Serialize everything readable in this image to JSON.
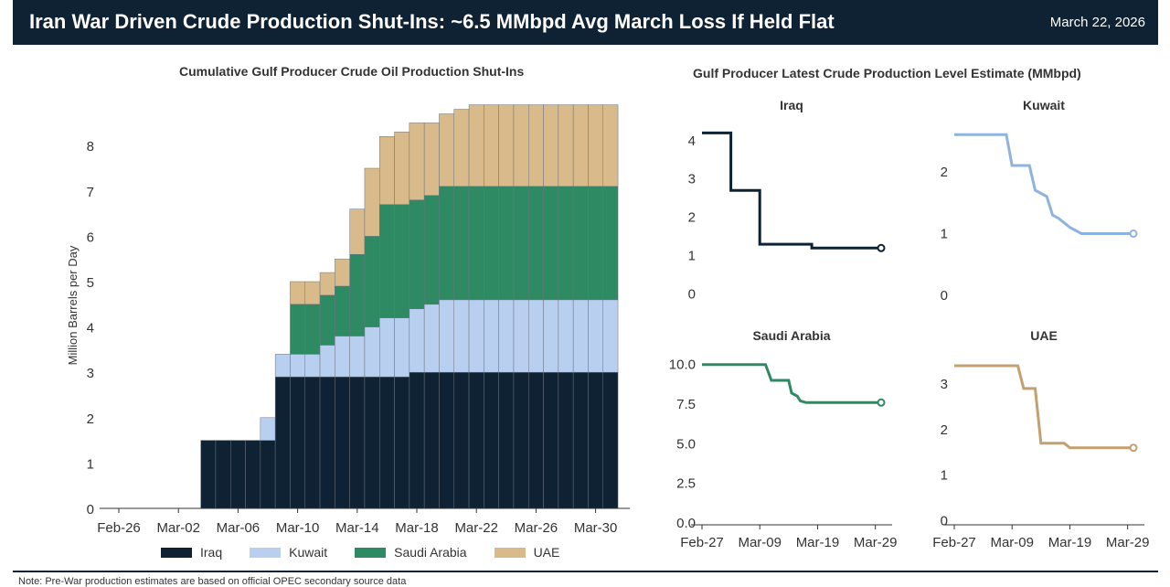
{
  "header": {
    "title": "Iran War Driven Crude Production Shut-Ins: ~6.5 MMbpd Avg March Loss If Held Flat",
    "date": "March 22, 2026"
  },
  "note": "Note: Pre-War production estimates are based on official OPEC secondary source data",
  "colors": {
    "header_bg": "#0e2233",
    "iraq": "#0e2233",
    "kuwait": "#b8cff0",
    "saudi": "#2e8a63",
    "uae": "#d9bb8b"
  },
  "chart_data": [
    {
      "type": "bar",
      "stacked": true,
      "title": "Cumulative Gulf Producer Crude Oil Production Shut-Ins",
      "xlabel": "",
      "ylabel": "Million Barrels per Day",
      "ylim": [
        0,
        9
      ],
      "yticks": [
        0,
        1,
        2,
        3,
        4,
        5,
        6,
        7,
        8
      ],
      "xtick_labels": [
        "Feb-26",
        "Mar-02",
        "Mar-06",
        "Mar-10",
        "Mar-14",
        "Mar-18",
        "Mar-22",
        "Mar-26",
        "Mar-30"
      ],
      "xtick_positions": [
        0,
        4,
        8,
        12,
        16,
        20,
        24,
        28,
        32
      ],
      "x_start_index": 6,
      "legend_placement": "bottom",
      "series": [
        {
          "name": "Iraq",
          "values": [
            1.5,
            1.5,
            1.5,
            1.5,
            1.5,
            2.9,
            2.9,
            2.9,
            2.9,
            2.9,
            2.9,
            2.9,
            2.9,
            2.9,
            3.0,
            3.0,
            3.0,
            3.0,
            3.0,
            3.0,
            3.0,
            3.0,
            3.0,
            3.0,
            3.0,
            3.0,
            3.0,
            3.0
          ]
        },
        {
          "name": "Kuwait",
          "values": [
            0.0,
            0.0,
            0.0,
            0.0,
            0.5,
            0.5,
            0.5,
            0.5,
            0.7,
            0.9,
            0.9,
            1.1,
            1.3,
            1.3,
            1.4,
            1.5,
            1.6,
            1.6,
            1.6,
            1.6,
            1.6,
            1.6,
            1.6,
            1.6,
            1.6,
            1.6,
            1.6,
            1.6
          ]
        },
        {
          "name": "Saudi Arabia",
          "values": [
            0.0,
            0.0,
            0.0,
            0.0,
            0.0,
            0.0,
            1.1,
            1.1,
            1.1,
            1.1,
            1.8,
            2.0,
            2.5,
            2.5,
            2.4,
            2.4,
            2.5,
            2.5,
            2.5,
            2.5,
            2.5,
            2.5,
            2.5,
            2.5,
            2.5,
            2.5,
            2.5,
            2.5
          ]
        },
        {
          "name": "UAE",
          "values": [
            0.0,
            0.0,
            0.0,
            0.0,
            0.0,
            0.0,
            0.5,
            0.5,
            0.5,
            0.6,
            1.0,
            1.5,
            1.5,
            1.6,
            1.7,
            1.6,
            1.6,
            1.7,
            1.8,
            1.8,
            1.8,
            1.8,
            1.8,
            1.8,
            1.8,
            1.8,
            1.8,
            1.8
          ]
        }
      ]
    },
    {
      "type": "line",
      "title": "Gulf Producer Latest Crude Production Level Estimate (MMbpd)",
      "xtick_labels": [
        "Feb-27",
        "Mar-09",
        "Mar-19",
        "Mar-29"
      ],
      "xtick_positions": [
        0,
        10,
        20,
        30
      ],
      "xlim": [
        -1,
        32
      ],
      "panels": [
        {
          "name": "Iraq",
          "color": "#0e2233",
          "ylim": [
            -0.2,
            4.4
          ],
          "yticks": [
            0,
            1,
            2,
            3,
            4
          ],
          "x": [
            0,
            5,
            5,
            10,
            10,
            19,
            19,
            31
          ],
          "y": [
            4.2,
            4.2,
            2.7,
            2.7,
            1.3,
            1.3,
            1.2,
            1.2
          ]
        },
        {
          "name": "Kuwait",
          "color": "#8fb3e0",
          "ylim": [
            -0.1,
            2.75
          ],
          "yticks": [
            0,
            1,
            2
          ],
          "x": [
            0,
            9,
            10,
            13,
            14,
            16,
            17,
            18,
            20,
            22,
            31
          ],
          "y": [
            2.6,
            2.6,
            2.1,
            2.1,
            1.7,
            1.6,
            1.3,
            1.25,
            1.1,
            1.0,
            1.0
          ]
        },
        {
          "name": "Saudi Arabia",
          "color": "#2e8a63",
          "ylim": [
            0,
            10.5
          ],
          "yticks": [
            0.0,
            2.5,
            5.0,
            7.5,
            10.0
          ],
          "ytick_labels": [
            "0.0",
            "2.5",
            "5.0",
            "7.5",
            "10.0"
          ],
          "x": [
            0,
            11,
            12,
            15,
            15.5,
            16.5,
            17,
            18,
            31
          ],
          "y": [
            10.0,
            10.0,
            9.0,
            9.0,
            8.2,
            8.0,
            7.7,
            7.6,
            7.6
          ]
        },
        {
          "name": "UAE",
          "color": "#c4a070",
          "ylim": [
            -0.05,
            3.6
          ],
          "yticks": [
            0,
            1,
            2,
            3
          ],
          "x": [
            0,
            11,
            12,
            14,
            15,
            19,
            20,
            31
          ],
          "y": [
            3.4,
            3.4,
            2.9,
            2.9,
            1.7,
            1.7,
            1.6,
            1.6
          ]
        }
      ]
    }
  ]
}
